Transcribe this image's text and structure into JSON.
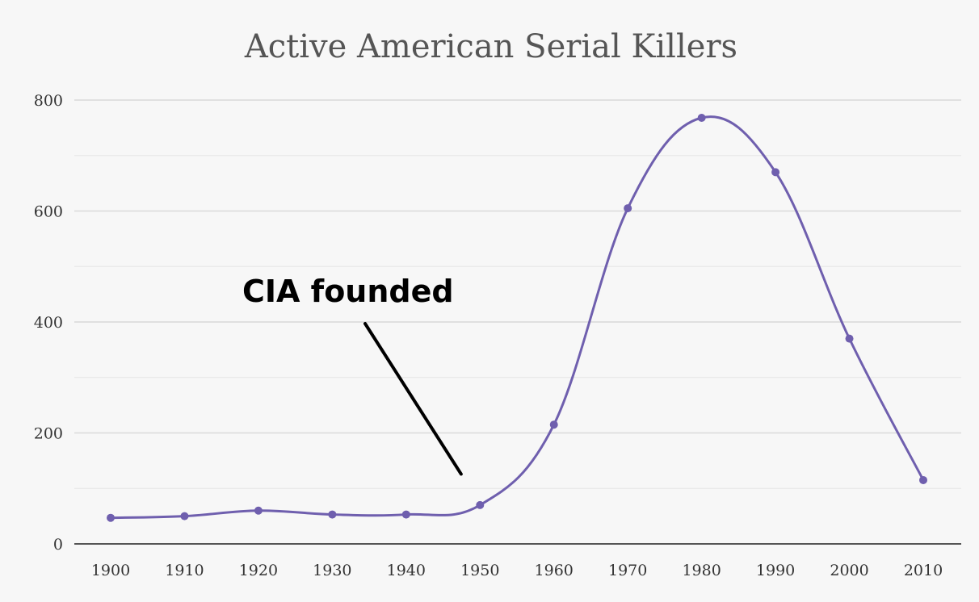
{
  "chart_data": {
    "type": "line",
    "title": "Active American Serial Killers",
    "xlabel": "",
    "ylabel": "",
    "x": [
      1900,
      1910,
      1920,
      1930,
      1940,
      1950,
      1960,
      1970,
      1980,
      1990,
      2000,
      2010
    ],
    "series": [
      {
        "values": [
          47,
          50,
          60,
          53,
          53,
          70,
          215,
          605,
          768,
          670,
          370,
          115
        ]
      }
    ],
    "ylim": [
      0,
      800
    ],
    "yticks": [
      0,
      200,
      400,
      600,
      800
    ],
    "grid": true,
    "minor_grid": true,
    "smooth": true,
    "legend": "none",
    "colors": {
      "line": "#6f5fae",
      "grid": "#d9d9d9",
      "axis": "#555555"
    },
    "annotations": [
      {
        "text": "CIA founded",
        "points_to": {
          "x": 1947,
          "y": 75
        }
      }
    ]
  }
}
